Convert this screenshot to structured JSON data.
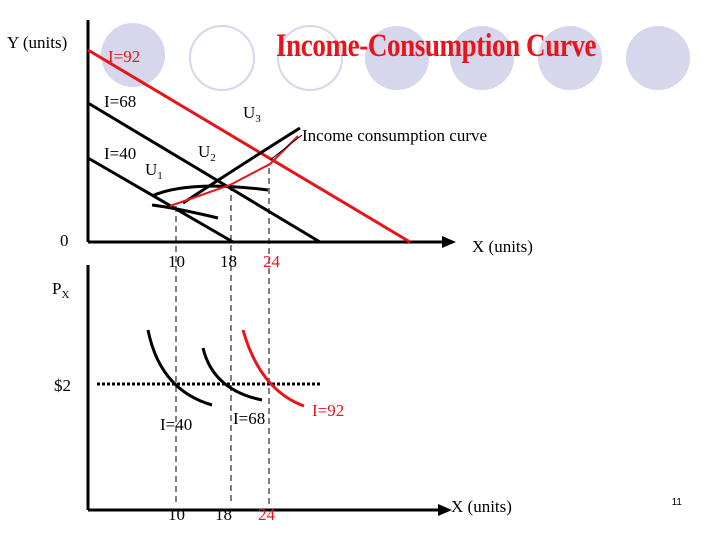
{
  "slide": {
    "title": "Income-Consumption Curve",
    "page_number": "11",
    "colors": {
      "accent": "#e8141b",
      "circles": "#d6d6ec",
      "ink": "#000000"
    }
  },
  "top_graph": {
    "y_axis_label": "Y (units)",
    "x_axis_label": "X (units)",
    "origin_label": "0",
    "budget_lines": [
      {
        "label": "I=40",
        "color": "#000000"
      },
      {
        "label": "I=68",
        "color": "#000000"
      },
      {
        "label": "I=92",
        "color": "#e8141b"
      }
    ],
    "indifference_curves": [
      {
        "letter": "U",
        "subscript": "1"
      },
      {
        "letter": "U",
        "subscript": "2"
      },
      {
        "letter": "U",
        "subscript": "3"
      }
    ],
    "curve_label": "Income consumption curve",
    "x_ticks": [
      {
        "value": "10",
        "color": "#000000"
      },
      {
        "value": "18",
        "color": "#000000"
      },
      {
        "value": "24",
        "color": "#e8141b"
      }
    ]
  },
  "bottom_graph": {
    "y_axis_label_main": "P",
    "y_axis_label_sub": "X",
    "price_label": "$2",
    "x_axis_label": "X (units)",
    "curve_labels": [
      {
        "label": "I=40",
        "color": "#000000"
      },
      {
        "label": "I=68",
        "color": "#000000"
      },
      {
        "label": "I=92",
        "color": "#e8141b"
      }
    ],
    "x_ticks": [
      {
        "value": "10",
        "color": "#000000"
      },
      {
        "value": "18",
        "color": "#000000"
      },
      {
        "value": "24",
        "color": "#e8141b"
      }
    ]
  }
}
